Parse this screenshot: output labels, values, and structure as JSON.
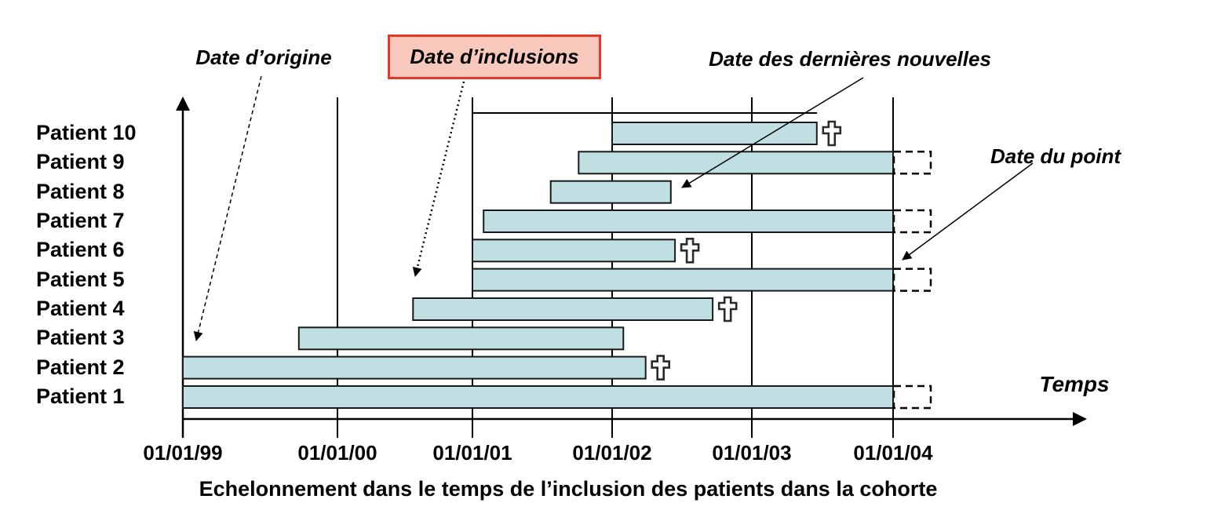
{
  "chart_data": {
    "type": "bar",
    "subtype": "gantt-cohort-timeline",
    "title": "Echelonnement dans le temps de l’inclusion des patients dans la cohorte",
    "x_axis": {
      "label": "Temps",
      "tick_labels": [
        "01/01/99",
        "01/01/00",
        "01/01/01",
        "01/01/02",
        "01/01/03",
        "01/01/04"
      ],
      "tick_years": [
        1999,
        2000,
        2001,
        2002,
        2003,
        2004
      ],
      "range_years": [
        1999,
        2004
      ]
    },
    "rows": [
      {
        "label": "Patient 10",
        "start_year": 2002.0,
        "end_year": 2003.46,
        "death": true,
        "ongoing_at_date_du_point": false
      },
      {
        "label": "Patient 9",
        "start_year": 2001.76,
        "end_year": 2004.0,
        "death": false,
        "ongoing_at_date_du_point": true
      },
      {
        "label": "Patient 8",
        "start_year": 2001.56,
        "end_year": 2002.42,
        "death": false,
        "ongoing_at_date_du_point": false
      },
      {
        "label": "Patient 7",
        "start_year": 2001.08,
        "end_year": 2004.0,
        "death": false,
        "ongoing_at_date_du_point": true
      },
      {
        "label": "Patient 6",
        "start_year": 2001.0,
        "end_year": 2002.45,
        "death": true,
        "ongoing_at_date_du_point": false
      },
      {
        "label": "Patient 5",
        "start_year": 2001.0,
        "end_year": 2004.0,
        "death": false,
        "ongoing_at_date_du_point": true
      },
      {
        "label": "Patient 4",
        "start_year": 2000.56,
        "end_year": 2002.72,
        "death": true,
        "ongoing_at_date_du_point": false
      },
      {
        "label": "Patient 3",
        "start_year": 1999.75,
        "end_year": 2002.08,
        "death": false,
        "ongoing_at_date_du_point": false
      },
      {
        "label": "Patient 2",
        "start_year": 1999.0,
        "end_year": 2002.24,
        "death": true,
        "ongoing_at_date_du_point": false
      },
      {
        "label": "Patient 1",
        "start_year": 1999.0,
        "end_year": 2004.0,
        "death": false,
        "ongoing_at_date_du_point": true
      }
    ],
    "annotations": [
      {
        "text": "Date d’origine",
        "boxed": false,
        "points_to": "start of Patient 2 bar at 01/01/99"
      },
      {
        "text": "Date d’inclusions",
        "boxed": true,
        "points_to": "staggered bar starts (Patient 4 inclusion)"
      },
      {
        "text": "Date des dernières nouvelles",
        "boxed": false,
        "points_to": "end of Patient 8 bar"
      },
      {
        "text": "Date du point",
        "boxed": false,
        "points_to": "vertical line at 01/01/04"
      },
      {
        "text": "Temps",
        "boxed": false,
        "points_to": "time axis"
      }
    ],
    "legend": "grid on (vertical year lines); bars = follow-up period; cross = death; dashed box after 01/01/04 = still followed at date du point",
    "colors": {
      "background": "#ffffff",
      "bar_fill": "#bfdfe3",
      "bar_border": "#1a1a1a",
      "box_fill": "#f9c8bc",
      "box_border": "#e5382b",
      "axis": "#000000",
      "text": "#000000",
      "death_cross_fill": "#ffffff",
      "death_cross_border": "#2a2a2a"
    }
  }
}
